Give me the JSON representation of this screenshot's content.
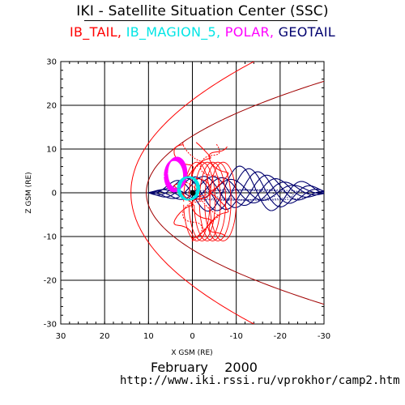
{
  "header": {
    "title": "IKI - Satellite Situation Center (SSC)",
    "legend_items": [
      {
        "label": "IB_TAIL,",
        "color": "#ff0000"
      },
      {
        "label": " IB_MAGION_5,",
        "color": "#00e5e5"
      },
      {
        "label": " POLAR,",
        "color": "#ff00ff"
      },
      {
        "label": " GEOTAIL",
        "color": "#00006e"
      }
    ]
  },
  "footer": {
    "date": "February    2000",
    "url": "http://www.iki.rssi.ru/vprokhor/camp2.htm"
  },
  "chart_data": {
    "type": "line",
    "title": "IKI - Satellite Situation Center (SSC)",
    "xlabel": "X GSM (RE)",
    "ylabel": "Z GSM (RE)",
    "xlim": [
      30,
      -30
    ],
    "ylim": [
      -30,
      30
    ],
    "x_ticks": [
      30,
      20,
      10,
      0,
      -10,
      -20,
      -30
    ],
    "y_ticks": [
      30,
      20,
      10,
      0,
      -10,
      -20,
      -30
    ],
    "grid": true,
    "boundaries": [
      {
        "name": "magnetopause",
        "color": "#a00000",
        "nose_x": 10.5,
        "flank_z_at_x_minus30": 25.5
      },
      {
        "name": "bow_shock",
        "color": "#ff0000",
        "nose_x": 14,
        "flank_z_at_x_minus14": 30
      }
    ],
    "series": [
      {
        "name": "IB_TAIL",
        "color": "#ff0000",
        "x_range": [
          5,
          -8
        ],
        "z_range": [
          -12,
          11
        ]
      },
      {
        "name": "IB_MAGION_5",
        "color": "#00e5e5",
        "x_range": [
          4,
          -3
        ],
        "z_range": [
          -2,
          4
        ]
      },
      {
        "name": "POLAR",
        "color": "#ff00ff",
        "x_range": [
          6,
          1
        ],
        "z_range": [
          -3,
          9
        ]
      },
      {
        "name": "GEOTAIL",
        "color": "#00006e",
        "x_range": [
          10,
          -31
        ],
        "z_range": [
          -4,
          6
        ]
      }
    ]
  }
}
